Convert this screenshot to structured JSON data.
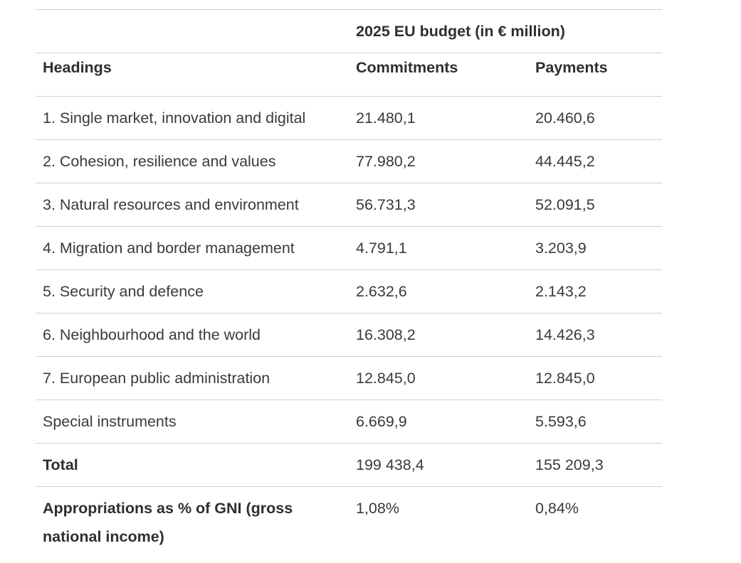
{
  "table": {
    "caption_header": "2025 EU budget (in € million)",
    "columns": {
      "headings": "Headings",
      "commitments": "Commitments",
      "payments": "Payments"
    },
    "rows": [
      {
        "heading": "1. Single market, innovation and digital",
        "commitments": "21.480,1",
        "payments": "20.460,6"
      },
      {
        "heading": "2. Cohesion, resilience and values",
        "commitments": "77.980,2",
        "payments": "44.445,2"
      },
      {
        "heading": "3. Natural resources and environment",
        "commitments": "56.731,3",
        "payments": "52.091,5"
      },
      {
        "heading": "4. Migration and border management",
        "commitments": "4.791,1",
        "payments": "3.203,9"
      },
      {
        "heading": "5. Security and defence",
        "commitments": "2.632,6",
        "payments": "2.143,2"
      },
      {
        "heading": "6. Neighbourhood and the world",
        "commitments": "16.308,2",
        "payments": "14.426,3"
      },
      {
        "heading": "7. European public administration",
        "commitments": "12.845,0",
        "payments": "12.845,0"
      },
      {
        "heading": "Special instruments",
        "commitments": "6.669,9",
        "payments": "5.593,6"
      }
    ],
    "total": {
      "label": "Total",
      "commitments": "199 438,4",
      "payments": "155 209,3"
    },
    "gni": {
      "label": "Appropriations as % of GNI (gross national income)",
      "commitments": "1,08%",
      "payments": "0,84%"
    }
  }
}
